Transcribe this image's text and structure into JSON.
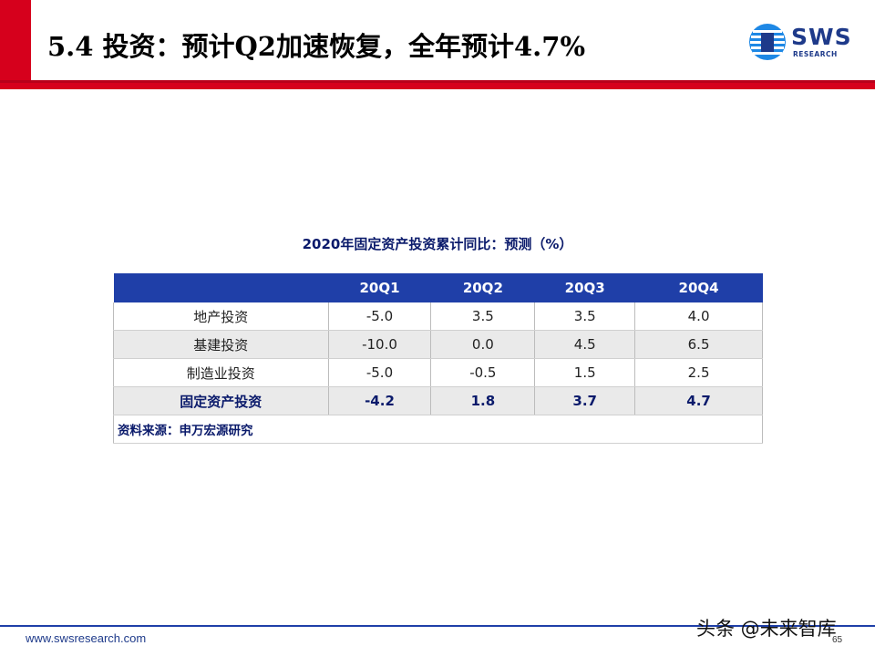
{
  "slide": {
    "title": "5.4 投资：预计Q2加速恢复，全年预计4.7%",
    "accent_color": "#d6001c",
    "brand_color": "#1e3a8a"
  },
  "logo": {
    "name": "SWS",
    "subtitle": "RESEARCH",
    "icon": "sws-logo-icon"
  },
  "table": {
    "title": "2020年固定资产投资累计同比：预测（%）",
    "headers": [
      "",
      "20Q1",
      "20Q2",
      "20Q3",
      "20Q4"
    ],
    "rows": [
      {
        "label": "地产投资",
        "values": [
          "-5.0",
          "3.5",
          "3.5",
          "4.0"
        ]
      },
      {
        "label": "基建投资",
        "values": [
          "-10.0",
          "0.0",
          "4.5",
          "6.5"
        ]
      },
      {
        "label": "制造业投资",
        "values": [
          "-5.0",
          "-0.5",
          "1.5",
          "2.5"
        ]
      },
      {
        "label": "固定资产投资",
        "values": [
          "-4.2",
          "1.8",
          "3.7",
          "4.7"
        ]
      }
    ],
    "source": "资料来源：申万宏源研究"
  },
  "footer": {
    "url": "www.swsresearch.com",
    "page": "65",
    "watermark": "头条 @未来智库"
  }
}
